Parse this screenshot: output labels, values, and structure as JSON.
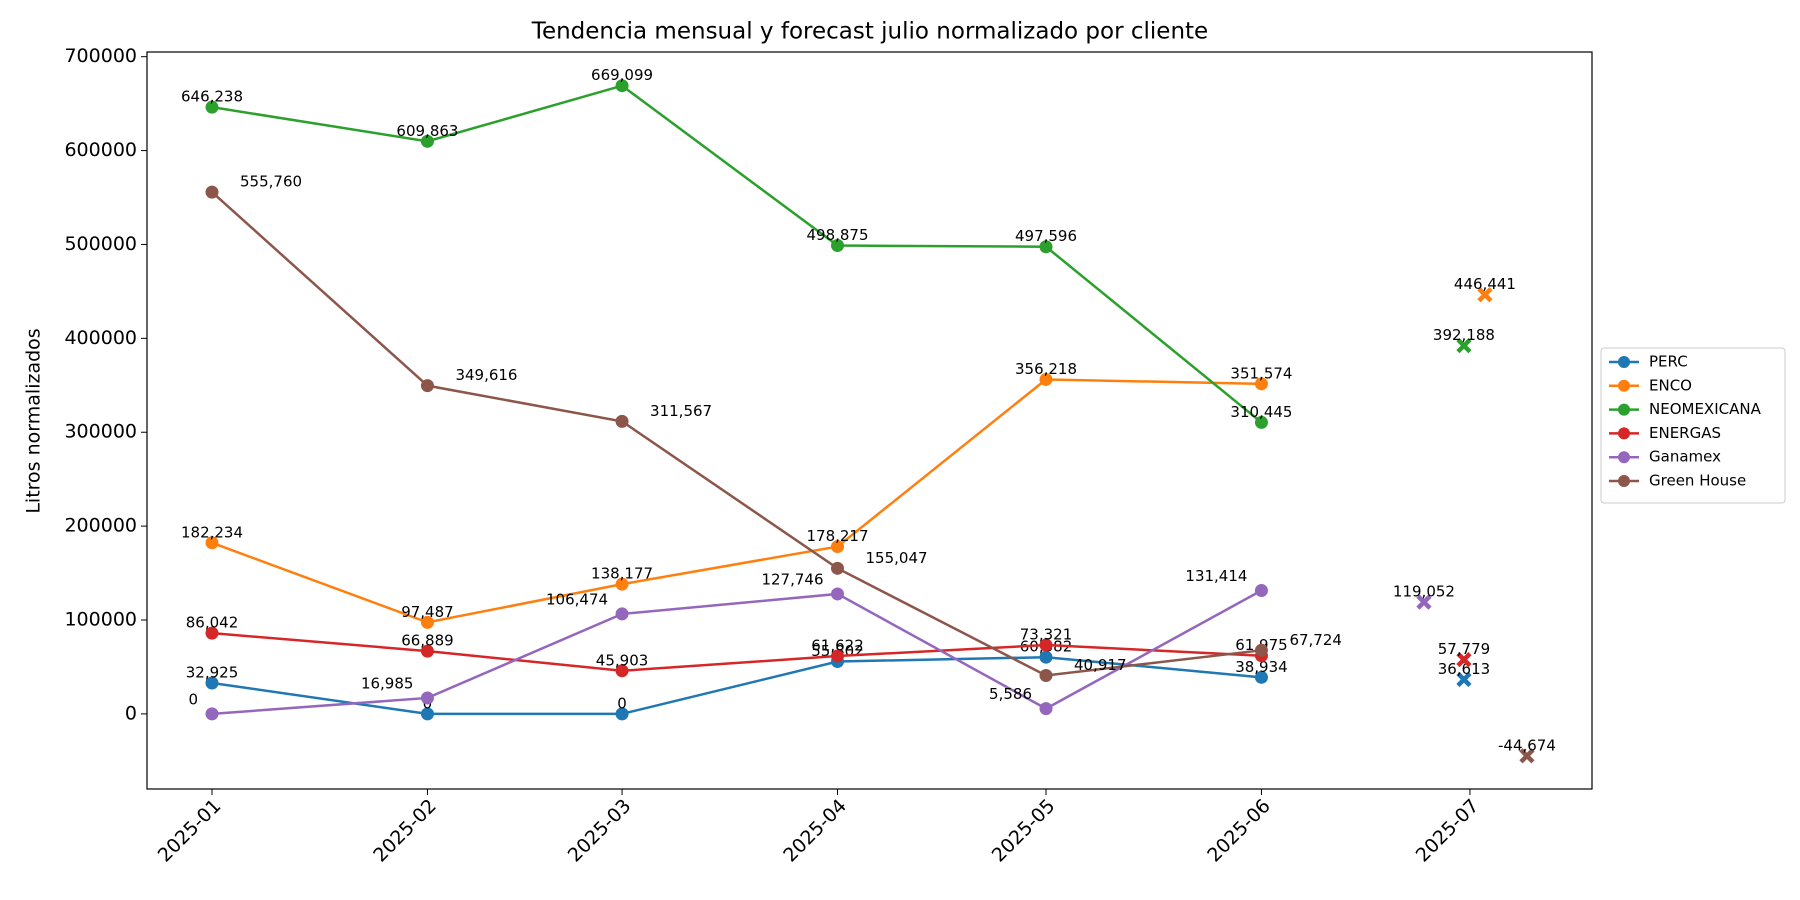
{
  "chart_data": {
    "type": "line",
    "title": "Tendencia mensual y forecast julio normalizado por cliente",
    "ylabel": "Litros normalizados",
    "x": [
      "2025-01",
      "2025-02",
      "2025-03",
      "2025-04",
      "2025-05",
      "2025-06"
    ],
    "forecast_x": "2025-07",
    "ylim": [
      -80000,
      705000
    ],
    "yticks": [
      0,
      100000,
      200000,
      300000,
      400000,
      500000,
      600000,
      700000
    ],
    "legend": "right",
    "series": [
      {
        "name": "PERC",
        "color": "#1f77b4",
        "values": [
          32925,
          0,
          0,
          55802,
          60382,
          38934
        ],
        "value_labels": [
          "32,925",
          "0",
          "0",
          "55,802",
          "60,382",
          "38,934"
        ],
        "forecast": 36613,
        "forecast_label": "36,613"
      },
      {
        "name": "ENCO",
        "color": "#ff7f0e",
        "values": [
          182234,
          97487,
          138177,
          178217,
          356218,
          351574
        ],
        "value_labels": [
          "182,234",
          "97,487",
          "138,177",
          "178,217",
          "356,218",
          "351,574"
        ],
        "forecast": 446441,
        "forecast_label": "446,441"
      },
      {
        "name": "NEOMEXICANA",
        "color": "#2ca02c",
        "values": [
          646238,
          609863,
          669099,
          498875,
          497596,
          310445
        ],
        "value_labels": [
          "646,238",
          "609,863",
          "669,099",
          "498,875",
          "497,596",
          "310,445"
        ],
        "forecast": 392188,
        "forecast_label": "392,188"
      },
      {
        "name": "ENERGAS",
        "color": "#d62728",
        "values": [
          86042,
          66889,
          45903,
          61622,
          73321,
          61975
        ],
        "value_labels": [
          "86,042",
          "66,889",
          "45,903",
          "61,622",
          "73,321",
          "61,975"
        ],
        "forecast": 57779,
        "forecast_label": "57,779"
      },
      {
        "name": "Ganamex",
        "color": "#9467bd",
        "values": [
          0,
          16985,
          106474,
          127746,
          5586,
          131414
        ],
        "value_labels": [
          "0",
          "16,985",
          "106,474",
          "127,746",
          "5,586",
          "131,414"
        ],
        "forecast": 119052,
        "forecast_label": "119,052"
      },
      {
        "name": "Green House",
        "color": "#8c564b",
        "values": [
          555760,
          349616,
          311567,
          155047,
          40917,
          67724
        ],
        "value_labels": [
          "555,760",
          "349,616",
          "311,567",
          "155,047",
          "40,917",
          "67,724"
        ],
        "forecast": -44674,
        "forecast_label": "-44,674"
      }
    ]
  }
}
